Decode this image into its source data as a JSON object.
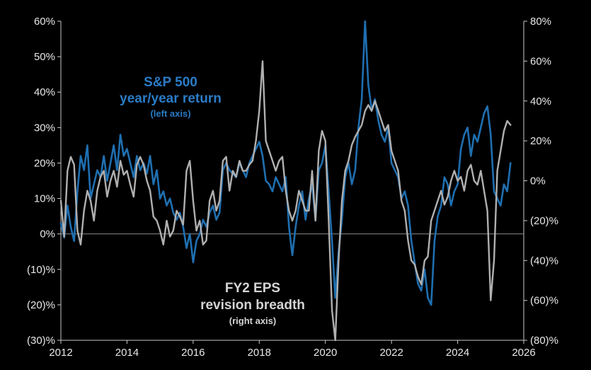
{
  "chart_data": {
    "type": "line",
    "x_ticks": [
      "2012",
      "2014",
      "2016",
      "2018",
      "2020",
      "2022",
      "2024",
      "2026"
    ],
    "xlim": [
      2012,
      2026
    ],
    "left_axis": {
      "ylim": [
        -30,
        60
      ],
      "ticks": [
        -30,
        -20,
        -10,
        0,
        10,
        20,
        30,
        40,
        50,
        60
      ],
      "tick_labels": [
        "(30)%",
        "(20)%",
        "(10)%",
        "0%",
        "10%",
        "20%",
        "30%",
        "40%",
        "50%",
        "60%"
      ]
    },
    "right_axis": {
      "ylim": [
        -80,
        80
      ],
      "ticks": [
        -80,
        -60,
        -40,
        -20,
        0,
        20,
        40,
        60,
        80
      ],
      "tick_labels": [
        "(80)%",
        "(60)%",
        "(40)%",
        "(20)%",
        "0%",
        "20%",
        "40%",
        "60%",
        "80%"
      ]
    },
    "annotations": {
      "sp500_line1": "S&P 500",
      "sp500_line2": "year/year return",
      "sp500_line3": "(left axis)",
      "eps_line1": "FY2 EPS",
      "eps_line2": "revision breadth",
      "eps_line3": "(right axis)"
    },
    "series": [
      {
        "name": "S&P 500 year/year return",
        "axis": "left",
        "color": "#1f6fb0",
        "x": [
          2012.0,
          2012.1,
          2012.2,
          2012.3,
          2012.4,
          2012.5,
          2012.6,
          2012.7,
          2012.8,
          2012.9,
          2013.0,
          2013.1,
          2013.2,
          2013.3,
          2013.4,
          2013.5,
          2013.6,
          2013.7,
          2013.8,
          2013.9,
          2014.0,
          2014.1,
          2014.2,
          2014.3,
          2014.4,
          2014.5,
          2014.6,
          2014.7,
          2014.8,
          2014.9,
          2015.0,
          2015.1,
          2015.2,
          2015.3,
          2015.4,
          2015.5,
          2015.6,
          2015.7,
          2015.8,
          2015.9,
          2016.0,
          2016.1,
          2016.2,
          2016.3,
          2016.4,
          2016.5,
          2016.6,
          2016.7,
          2016.8,
          2016.9,
          2017.0,
          2017.1,
          2017.2,
          2017.3,
          2017.4,
          2017.5,
          2017.6,
          2017.7,
          2017.8,
          2017.9,
          2018.0,
          2018.1,
          2018.2,
          2018.3,
          2018.4,
          2018.5,
          2018.6,
          2018.7,
          2018.8,
          2018.9,
          2019.0,
          2019.1,
          2019.2,
          2019.3,
          2019.4,
          2019.5,
          2019.6,
          2019.7,
          2019.8,
          2019.9,
          2020.0,
          2020.1,
          2020.2,
          2020.3,
          2020.4,
          2020.5,
          2020.6,
          2020.7,
          2020.8,
          2020.9,
          2021.0,
          2021.1,
          2021.2,
          2021.3,
          2021.4,
          2021.5,
          2021.6,
          2021.7,
          2021.8,
          2021.9,
          2022.0,
          2022.1,
          2022.2,
          2022.3,
          2022.4,
          2022.5,
          2022.6,
          2022.7,
          2022.8,
          2022.9,
          2023.0,
          2023.1,
          2023.2,
          2023.3,
          2023.4,
          2023.5,
          2023.6,
          2023.7,
          2023.8,
          2023.9,
          2024.0,
          2024.1,
          2024.2,
          2024.3,
          2024.4,
          2024.5,
          2024.6,
          2024.7,
          2024.8,
          2024.9,
          2025.0,
          2025.1,
          2025.2,
          2025.3,
          2025.4,
          2025.5,
          2025.6
        ],
        "values": [
          3,
          -1,
          8,
          2,
          -2,
          12,
          22,
          18,
          25,
          10,
          14,
          18,
          16,
          22,
          15,
          20,
          25,
          18,
          28,
          22,
          24,
          20,
          16,
          22,
          18,
          20,
          17,
          22,
          14,
          18,
          10,
          12,
          8,
          10,
          6,
          4,
          6,
          2,
          -4,
          0,
          -8,
          -2,
          0,
          4,
          2,
          6,
          8,
          4,
          6,
          18,
          20,
          18,
          17,
          16,
          20,
          18,
          16,
          20,
          22,
          24,
          26,
          22,
          15,
          14,
          12,
          16,
          14,
          12,
          16,
          2,
          -6,
          2,
          8,
          12,
          4,
          10,
          14,
          4,
          18,
          20,
          25,
          12,
          -2,
          -18,
          -5,
          4,
          16,
          20,
          14,
          18,
          30,
          38,
          60,
          42,
          35,
          38,
          32,
          28,
          26,
          30,
          20,
          18,
          16,
          10,
          12,
          8,
          -2,
          -8,
          -14,
          -16,
          -10,
          -18,
          -20,
          -2,
          5,
          8,
          16,
          14,
          8,
          12,
          14,
          24,
          28,
          30,
          22,
          28,
          26,
          30,
          34,
          36,
          28,
          12,
          10,
          8,
          14,
          12,
          20
        ]
      },
      {
        "name": "FY2 EPS revision breadth",
        "axis": "right",
        "color": "#b0b0b0",
        "x": [
          2012.0,
          2012.1,
          2012.2,
          2012.3,
          2012.4,
          2012.5,
          2012.6,
          2012.7,
          2012.8,
          2012.9,
          2013.0,
          2013.1,
          2013.2,
          2013.3,
          2013.4,
          2013.5,
          2013.6,
          2013.7,
          2013.8,
          2013.9,
          2014.0,
          2014.1,
          2014.2,
          2014.3,
          2014.4,
          2014.5,
          2014.6,
          2014.7,
          2014.8,
          2014.9,
          2015.0,
          2015.1,
          2015.2,
          2015.3,
          2015.4,
          2015.5,
          2015.6,
          2015.7,
          2015.8,
          2015.9,
          2016.0,
          2016.1,
          2016.2,
          2016.3,
          2016.4,
          2016.5,
          2016.6,
          2016.7,
          2016.8,
          2016.9,
          2017.0,
          2017.1,
          2017.2,
          2017.3,
          2017.4,
          2017.5,
          2017.6,
          2017.7,
          2017.8,
          2017.9,
          2018.0,
          2018.1,
          2018.2,
          2018.3,
          2018.4,
          2018.5,
          2018.6,
          2018.7,
          2018.8,
          2018.9,
          2019.0,
          2019.1,
          2019.2,
          2019.3,
          2019.4,
          2019.5,
          2019.6,
          2019.7,
          2019.8,
          2019.9,
          2020.0,
          2020.1,
          2020.2,
          2020.3,
          2020.4,
          2020.5,
          2020.6,
          2020.7,
          2020.8,
          2020.9,
          2021.0,
          2021.1,
          2021.2,
          2021.3,
          2021.4,
          2021.5,
          2021.6,
          2021.7,
          2021.8,
          2021.9,
          2022.0,
          2022.1,
          2022.2,
          2022.3,
          2022.4,
          2022.5,
          2022.6,
          2022.7,
          2022.8,
          2022.9,
          2023.0,
          2023.1,
          2023.2,
          2023.3,
          2023.4,
          2023.5,
          2023.6,
          2023.7,
          2023.8,
          2023.9,
          2024.0,
          2024.1,
          2024.2,
          2024.3,
          2024.4,
          2024.5,
          2024.6,
          2024.7,
          2024.8,
          2024.9,
          2025.0,
          2025.1,
          2025.2,
          2025.3,
          2025.4,
          2025.5,
          2025.6
        ],
        "values": [
          -10,
          -28,
          5,
          12,
          8,
          -25,
          -32,
          -15,
          -5,
          -10,
          -20,
          -5,
          2,
          5,
          -8,
          0,
          5,
          -3,
          10,
          3,
          5,
          -2,
          -8,
          8,
          12,
          8,
          0,
          -5,
          -18,
          -20,
          -25,
          -32,
          -20,
          -28,
          -25,
          -15,
          -18,
          -22,
          5,
          10,
          -10,
          -25,
          -20,
          -32,
          -30,
          -10,
          -5,
          -15,
          -10,
          10,
          12,
          -5,
          5,
          2,
          10,
          5,
          5,
          8,
          10,
          20,
          35,
          60,
          20,
          15,
          10,
          5,
          10,
          12,
          -5,
          -15,
          -20,
          -15,
          -5,
          -10,
          -15,
          -15,
          5,
          -20,
          15,
          25,
          20,
          -20,
          -65,
          -85,
          -40,
          -10,
          5,
          10,
          18,
          22,
          25,
          28,
          35,
          38,
          35,
          40,
          35,
          30,
          25,
          28,
          15,
          10,
          5,
          -10,
          -15,
          -30,
          -40,
          -42,
          -48,
          -52,
          -40,
          -38,
          -20,
          -15,
          -10,
          -5,
          -12,
          -8,
          0,
          5,
          0,
          2,
          -5,
          5,
          8,
          0,
          -2,
          5,
          -5,
          -15,
          -60,
          -40,
          5,
          15,
          25,
          30,
          28
        ]
      }
    ]
  }
}
